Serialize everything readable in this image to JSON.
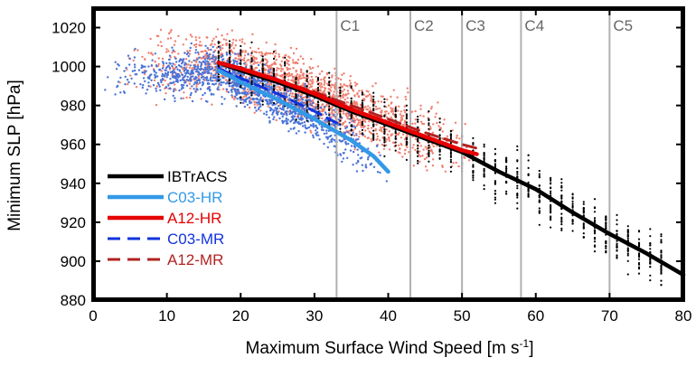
{
  "chart_data": {
    "type": "scatter",
    "xlabel": "Maximum Surface Wind Speed [m s",
    "xlabel_sup": "-1",
    "xlabel_end": "]",
    "ylabel": "Minimum SLP [hPa]",
    "xlim": [
      0,
      80
    ],
    "ylim": [
      880,
      1030
    ],
    "xticks": [
      0,
      10,
      20,
      30,
      40,
      50,
      60,
      70,
      80
    ],
    "yticks": [
      880,
      900,
      920,
      940,
      960,
      980,
      1000,
      1020
    ],
    "category_lines": [
      {
        "label": "C1",
        "x": 33
      },
      {
        "label": "C2",
        "x": 43
      },
      {
        "label": "C3",
        "x": 50
      },
      {
        "label": "C4",
        "x": 58
      },
      {
        "label": "C5",
        "x": 70
      }
    ],
    "legend_position": "lower-left",
    "series": [
      {
        "name": "IBTrACS",
        "color": "#000000",
        "style": "solid",
        "x": [
          17,
          20,
          25,
          30,
          35,
          40,
          45,
          50,
          55,
          60,
          65,
          70,
          75,
          80
        ],
        "y": [
          1002,
          998,
          992,
          985,
          977,
          970,
          963,
          956,
          946,
          937,
          925,
          914,
          904,
          893
        ]
      },
      {
        "name": "C03-HR",
        "color": "#3399e6",
        "style": "solid",
        "x": [
          17,
          20,
          25,
          30,
          35,
          38,
          40
        ],
        "y": [
          998,
          992,
          983,
          973,
          962,
          954,
          946
        ]
      },
      {
        "name": "A12-HR",
        "color": "#e60000",
        "style": "solid",
        "x": [
          17,
          20,
          25,
          30,
          35,
          40,
          45,
          50,
          52
        ],
        "y": [
          1002,
          999,
          993,
          986,
          978,
          971,
          964,
          957,
          955
        ]
      },
      {
        "name": "C03-MR",
        "color": "#1133dd",
        "style": "dashed",
        "x": [
          17,
          20,
          25,
          30,
          33
        ],
        "y": [
          999,
          994,
          986,
          977,
          971
        ]
      },
      {
        "name": "A12-MR",
        "color": "#b22222",
        "style": "dashed",
        "x": [
          17,
          20,
          25,
          30,
          35,
          40,
          45,
          50,
          52
        ],
        "y": [
          1002,
          999,
          993,
          987,
          980,
          973,
          966,
          960,
          958
        ]
      }
    ],
    "scatter_clouds": [
      {
        "series": "A12-HR",
        "color": "#f08070",
        "x_range": [
          3,
          52
        ]
      },
      {
        "series": "C03-HR",
        "color": "#4a74d8",
        "x_range": [
          1,
          40
        ]
      },
      {
        "series": "IBTrACS",
        "color": "#000000",
        "x_range": [
          17,
          78
        ]
      }
    ]
  }
}
